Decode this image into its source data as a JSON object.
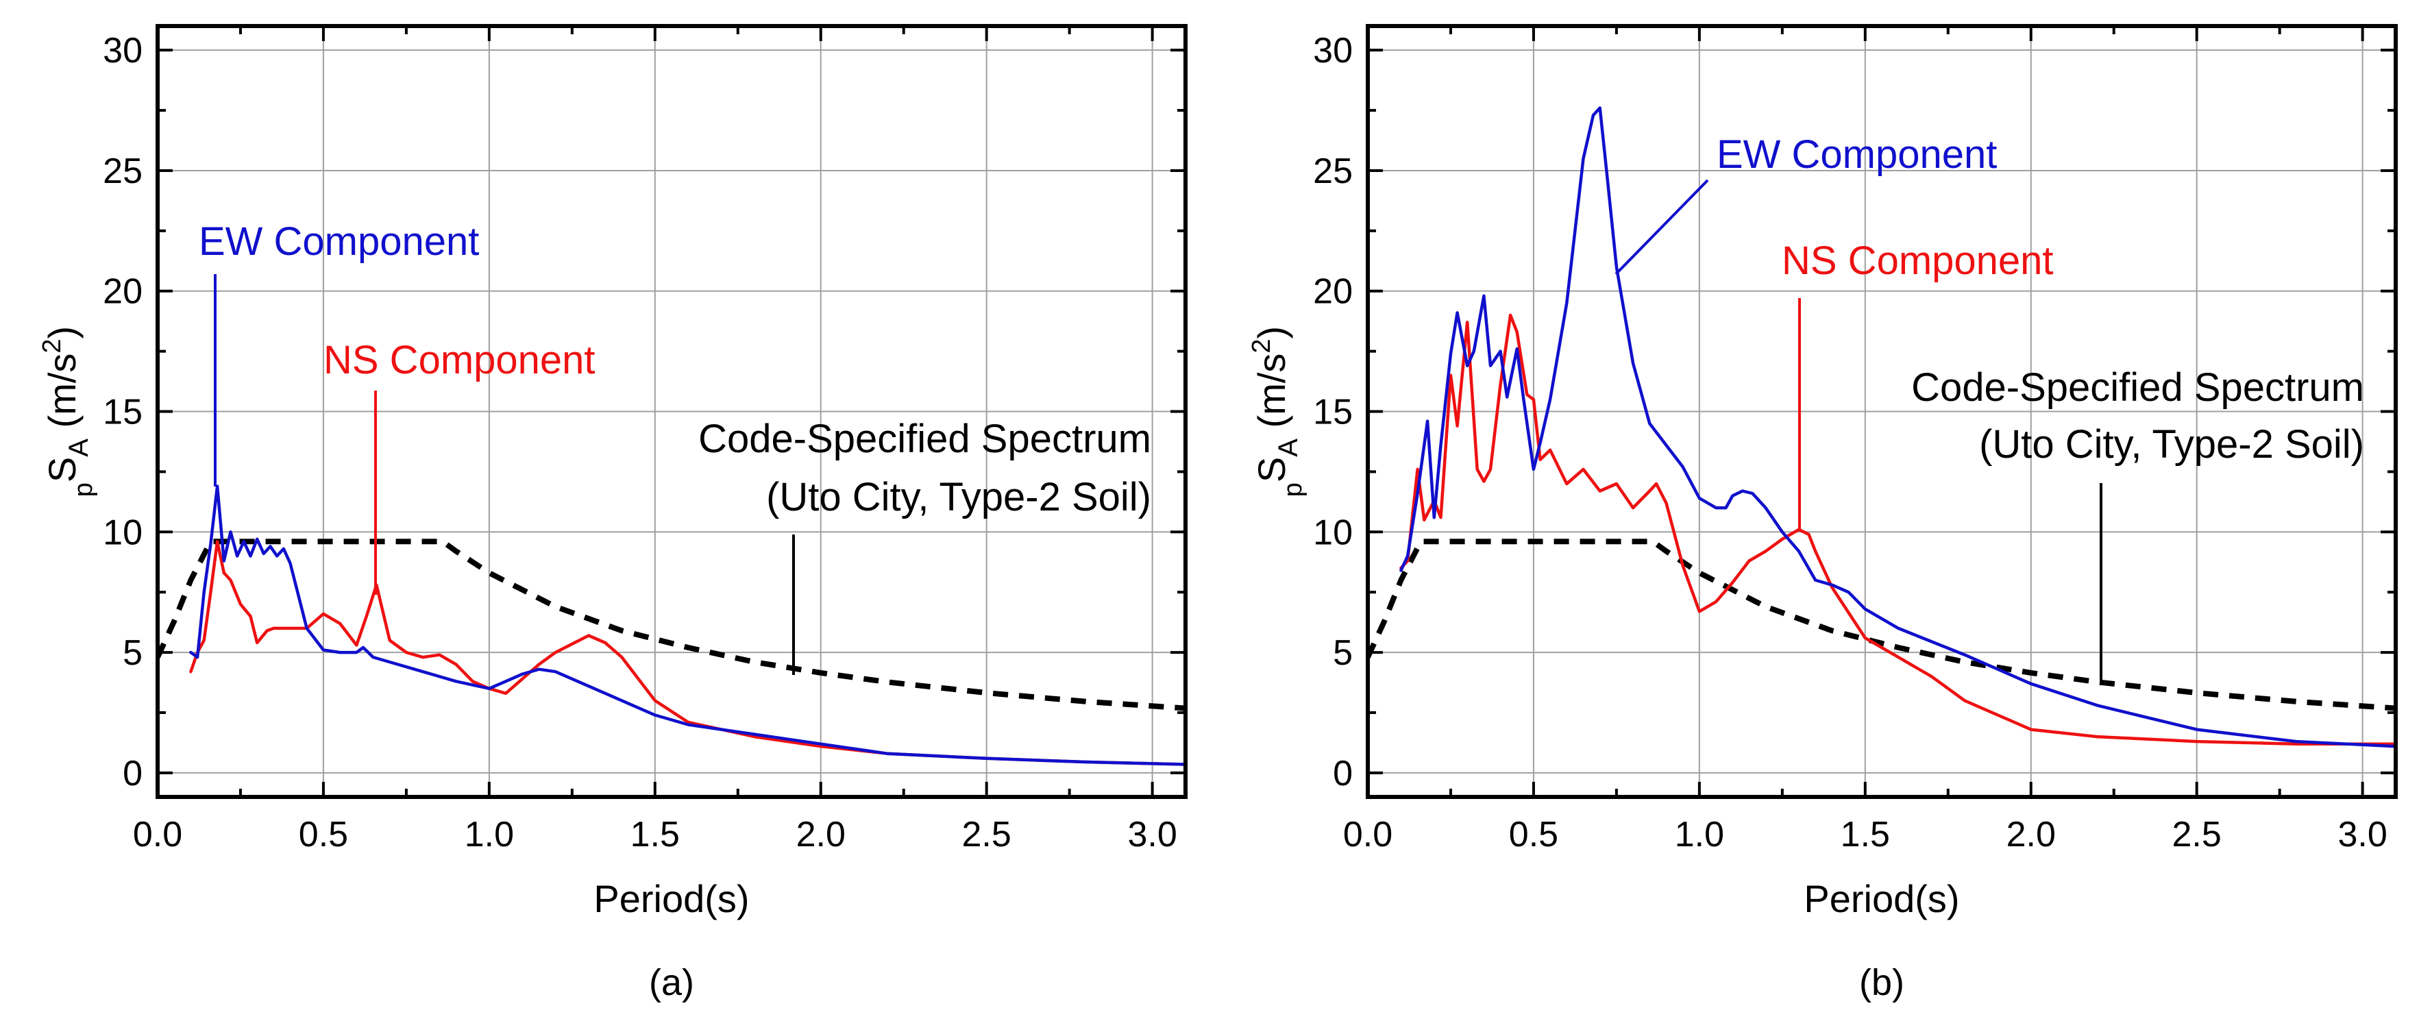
{
  "chart_data": [
    {
      "type": "line",
      "panel_label": "(a)",
      "xlabel": "Period(s)",
      "ylabel": {
        "main": "S",
        "sub_left": "p",
        "sub": "A",
        "unit": "(m/s",
        "unit_sup": "2",
        "unit_end": ")"
      },
      "xlim": [
        0.0,
        3.1
      ],
      "ylim": [
        -1,
        31
      ],
      "xticks": [
        "0.0",
        "0.5",
        "1.0",
        "1.5",
        "2.0",
        "2.5",
        "3.0"
      ],
      "yticks": [
        "0",
        "5",
        "10",
        "15",
        "20",
        "25",
        "30"
      ],
      "grid": true,
      "colors": {
        "EW": "#1010cc",
        "NS": "#ee1111",
        "Code": "#000000"
      },
      "annotations": [
        {
          "text": "EW Component",
          "series": "EW"
        },
        {
          "text": "NS Component",
          "series": "NS"
        },
        {
          "text": "Code-Specified Spectrum",
          "series": "Code"
        },
        {
          "text": "(Uto City, Type-2 Soil)",
          "series": "Code"
        }
      ],
      "series": [
        {
          "name": "EW Component",
          "key": "EW",
          "x": [
            0.1,
            0.12,
            0.14,
            0.16,
            0.18,
            0.2,
            0.22,
            0.24,
            0.26,
            0.28,
            0.3,
            0.32,
            0.34,
            0.36,
            0.38,
            0.4,
            0.45,
            0.5,
            0.55,
            0.6,
            0.62,
            0.65,
            0.7,
            0.8,
            0.9,
            1.0,
            1.05,
            1.1,
            1.15,
            1.2,
            1.3,
            1.4,
            1.5,
            1.6,
            1.8,
            2.0,
            2.2,
            2.5,
            2.8,
            3.1
          ],
          "y": [
            5.0,
            4.8,
            7.5,
            9.5,
            11.9,
            8.8,
            10.0,
            9.0,
            9.6,
            9.0,
            9.7,
            9.1,
            9.4,
            9.0,
            9.3,
            8.7,
            6.0,
            5.1,
            5.0,
            5.0,
            5.2,
            4.8,
            4.6,
            4.2,
            3.8,
            3.5,
            3.8,
            4.1,
            4.3,
            4.2,
            3.6,
            3.0,
            2.4,
            2.0,
            1.6,
            1.2,
            0.8,
            0.6,
            0.45,
            0.35
          ]
        },
        {
          "name": "NS Component",
          "key": "NS",
          "x": [
            0.1,
            0.12,
            0.14,
            0.16,
            0.18,
            0.2,
            0.22,
            0.25,
            0.28,
            0.3,
            0.33,
            0.35,
            0.4,
            0.45,
            0.5,
            0.55,
            0.6,
            0.63,
            0.66,
            0.7,
            0.75,
            0.8,
            0.85,
            0.9,
            0.95,
            1.0,
            1.05,
            1.1,
            1.15,
            1.2,
            1.3,
            1.35,
            1.4,
            1.5,
            1.6,
            1.8,
            2.0,
            2.2,
            2.5,
            2.8,
            3.1
          ],
          "y": [
            4.2,
            5.0,
            5.5,
            7.5,
            9.6,
            8.3,
            8.0,
            7.0,
            6.5,
            5.4,
            5.9,
            6.0,
            6.0,
            6.0,
            6.6,
            6.2,
            5.3,
            6.5,
            7.8,
            5.5,
            5.0,
            4.8,
            4.9,
            4.5,
            3.8,
            3.5,
            3.3,
            3.9,
            4.5,
            5.0,
            5.7,
            5.4,
            4.8,
            3.0,
            2.1,
            1.5,
            1.1,
            0.8,
            0.6,
            0.45,
            0.35
          ]
        },
        {
          "name": "Code-Specified Spectrum",
          "key": "Code",
          "dashed": true,
          "x": [
            0.0,
            0.05,
            0.1,
            0.16,
            0.2,
            0.4,
            0.6,
            0.86,
            0.9,
            1.0,
            1.2,
            1.4,
            1.6,
            1.8,
            2.0,
            2.2,
            2.5,
            2.8,
            3.1
          ],
          "y": [
            4.8,
            6.3,
            8.0,
            9.6,
            9.6,
            9.6,
            9.6,
            9.6,
            9.2,
            8.3,
            6.9,
            5.9,
            5.2,
            4.6,
            4.15,
            3.77,
            3.32,
            2.96,
            2.68
          ]
        }
      ]
    },
    {
      "type": "line",
      "panel_label": "(b)",
      "xlabel": "Period(s)",
      "ylabel": {
        "main": "S",
        "sub_left": "p",
        "sub": "A",
        "unit": "(m/s",
        "unit_sup": "2",
        "unit_end": ")"
      },
      "xlim": [
        0.0,
        3.1
      ],
      "ylim": [
        -1,
        31
      ],
      "xticks": [
        "0.0",
        "0.5",
        "1.0",
        "1.5",
        "2.0",
        "2.5",
        "3.0"
      ],
      "yticks": [
        "0",
        "5",
        "10",
        "15",
        "20",
        "25",
        "30"
      ],
      "grid": true,
      "colors": {
        "EW": "#1010cc",
        "NS": "#ee1111",
        "Code": "#000000"
      },
      "annotations": [
        {
          "text": "EW Component",
          "series": "EW"
        },
        {
          "text": "NS Component",
          "series": "NS"
        },
        {
          "text": "Code-Specified Spectrum",
          "series": "Code"
        },
        {
          "text": "(Uto City, Type-2 Soil)",
          "series": "Code"
        }
      ],
      "series": [
        {
          "name": "EW Component",
          "key": "EW",
          "x": [
            0.1,
            0.12,
            0.15,
            0.18,
            0.2,
            0.22,
            0.25,
            0.27,
            0.3,
            0.32,
            0.35,
            0.37,
            0.4,
            0.42,
            0.45,
            0.47,
            0.5,
            0.52,
            0.55,
            0.6,
            0.65,
            0.68,
            0.7,
            0.72,
            0.75,
            0.8,
            0.85,
            0.9,
            0.95,
            1.0,
            1.05,
            1.08,
            1.1,
            1.13,
            1.16,
            1.2,
            1.25,
            1.3,
            1.35,
            1.4,
            1.45,
            1.5,
            1.6,
            1.8,
            2.0,
            2.2,
            2.5,
            2.8,
            3.1
          ],
          "y": [
            8.4,
            9.0,
            11.6,
            14.6,
            10.6,
            13.6,
            17.4,
            19.1,
            16.9,
            17.5,
            19.8,
            16.9,
            17.5,
            15.6,
            17.6,
            15.5,
            12.6,
            13.7,
            15.5,
            19.5,
            25.5,
            27.3,
            27.6,
            25.0,
            21.0,
            17.0,
            14.5,
            13.6,
            12.7,
            11.4,
            11.0,
            11.0,
            11.5,
            11.7,
            11.6,
            11.0,
            10.0,
            9.2,
            8.0,
            7.8,
            7.5,
            6.8,
            6.0,
            4.9,
            3.7,
            2.8,
            1.8,
            1.3,
            1.1
          ]
        },
        {
          "name": "NS Component",
          "key": "NS",
          "x": [
            0.1,
            0.12,
            0.15,
            0.17,
            0.2,
            0.22,
            0.25,
            0.27,
            0.3,
            0.33,
            0.35,
            0.37,
            0.4,
            0.43,
            0.45,
            0.48,
            0.5,
            0.52,
            0.55,
            0.6,
            0.65,
            0.7,
            0.75,
            0.8,
            0.85,
            0.87,
            0.9,
            0.95,
            1.0,
            1.05,
            1.1,
            1.15,
            1.2,
            1.25,
            1.3,
            1.33,
            1.35,
            1.4,
            1.5,
            1.6,
            1.7,
            1.8,
            2.0,
            2.2,
            2.5,
            2.8,
            3.1
          ],
          "y": [
            8.5,
            8.8,
            12.6,
            10.5,
            11.3,
            10.6,
            16.5,
            14.4,
            18.7,
            12.6,
            12.1,
            12.6,
            16.1,
            19.0,
            18.3,
            15.7,
            15.5,
            13.0,
            13.4,
            12.0,
            12.6,
            11.7,
            12.0,
            11.0,
            11.7,
            12.0,
            11.2,
            8.6,
            6.7,
            7.1,
            7.9,
            8.8,
            9.2,
            9.7,
            10.1,
            9.9,
            9.2,
            7.7,
            5.6,
            4.8,
            4.0,
            3.0,
            1.8,
            1.5,
            1.3,
            1.2,
            1.2
          ]
        },
        {
          "name": "Code-Specified Spectrum",
          "key": "Code",
          "dashed": true,
          "x": [
            0.0,
            0.05,
            0.1,
            0.16,
            0.2,
            0.4,
            0.6,
            0.86,
            0.9,
            1.0,
            1.2,
            1.4,
            1.6,
            1.8,
            2.0,
            2.2,
            2.5,
            2.8,
            3.1
          ],
          "y": [
            4.8,
            6.3,
            8.0,
            9.6,
            9.6,
            9.6,
            9.6,
            9.6,
            9.2,
            8.3,
            6.9,
            5.9,
            5.2,
            4.6,
            4.15,
            3.77,
            3.32,
            2.96,
            2.68
          ]
        }
      ]
    }
  ]
}
